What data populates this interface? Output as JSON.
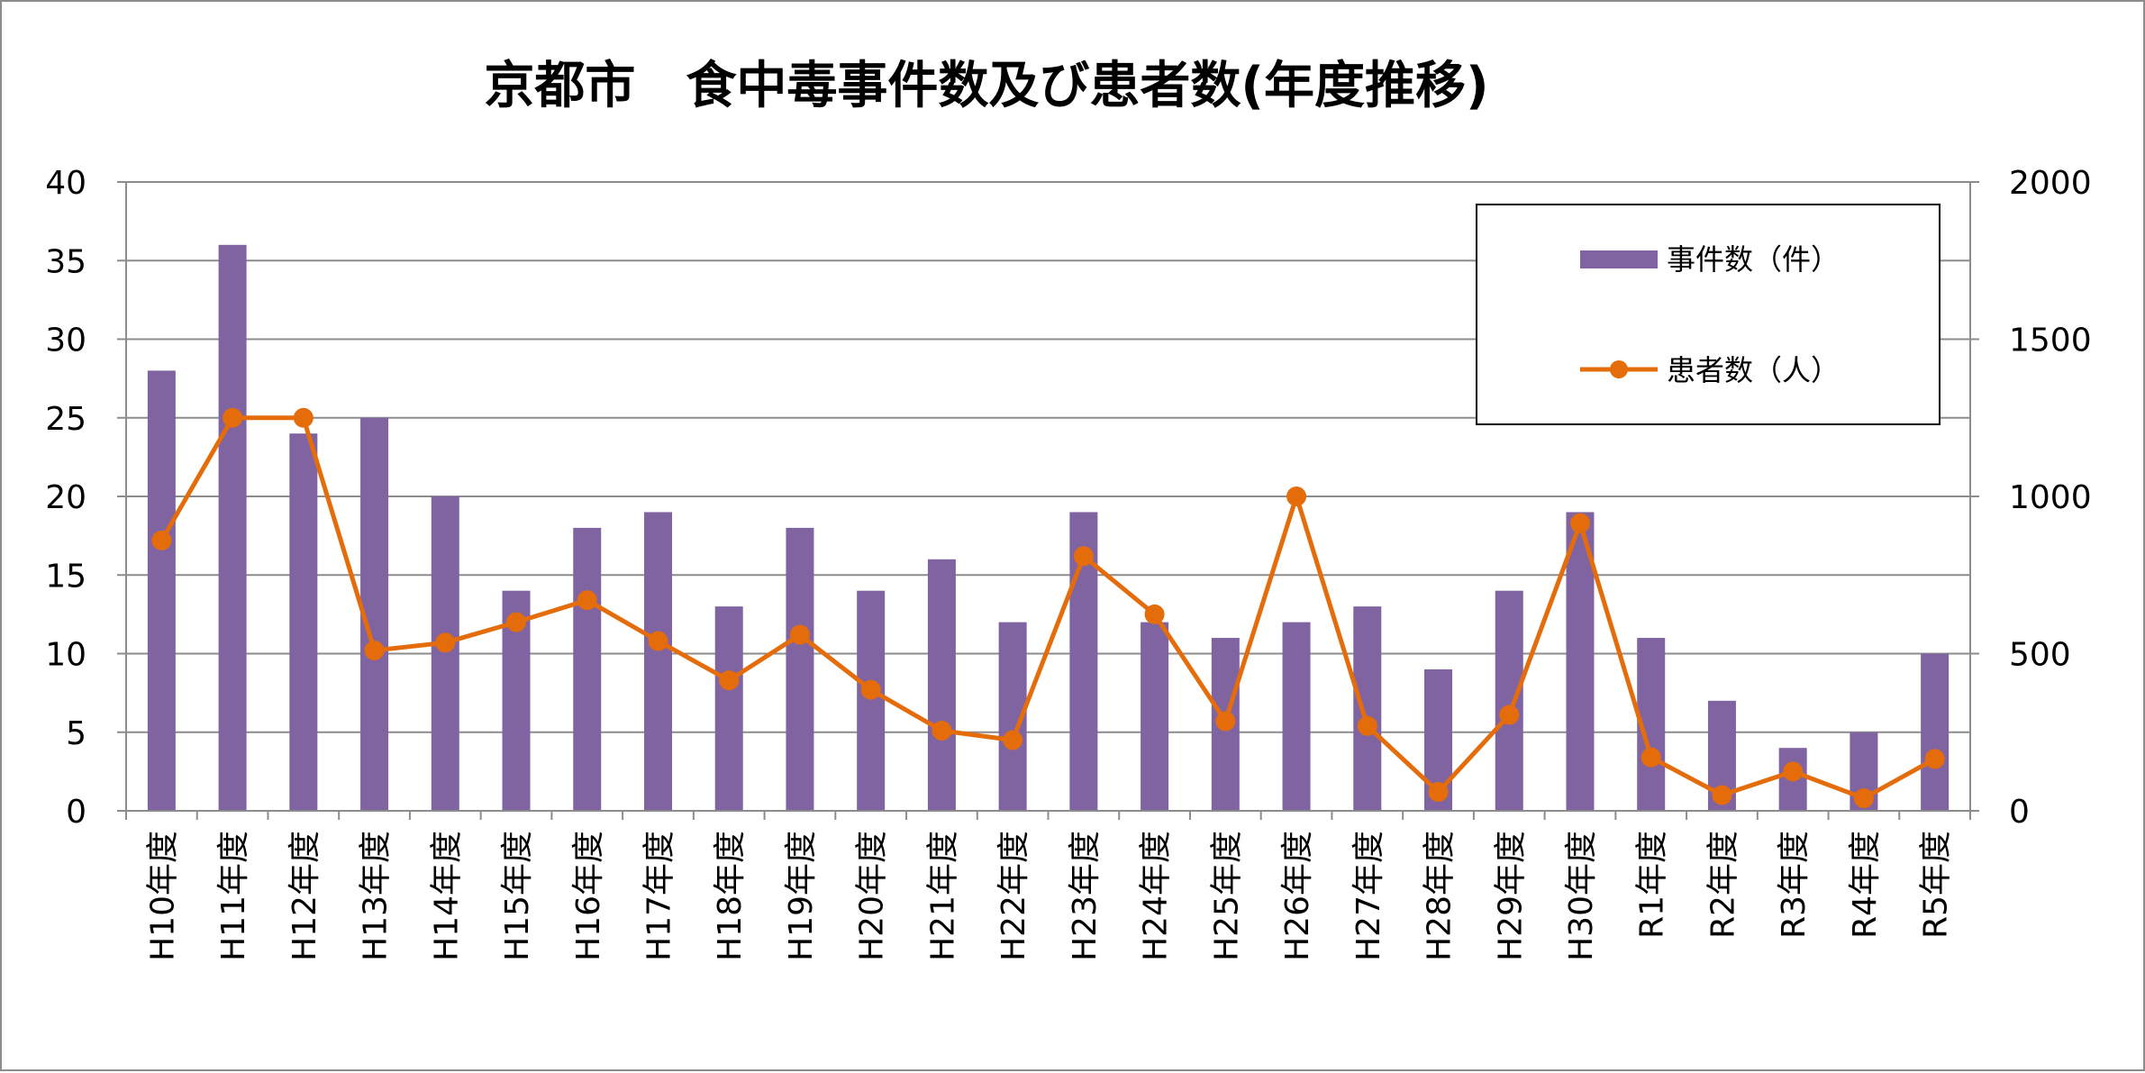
{
  "chart_data": {
    "type": "bar",
    "title": "京都市　食中毒事件数及び患者数(年度推移)",
    "categories": [
      "H10年度",
      "H11年度",
      "H12年度",
      "H13年度",
      "H14年度",
      "H15年度",
      "H16年度",
      "H17年度",
      "H18年度",
      "H19年度",
      "H20年度",
      "H21年度",
      "H22年度",
      "H23年度",
      "H24年度",
      "H25年度",
      "H26年度",
      "H27年度",
      "H28年度",
      "H29年度",
      "H30年度",
      "R1年度",
      "R2年度",
      "R3年度",
      "R4年度",
      "R5年度"
    ],
    "series": [
      {
        "name": "事件数（件）",
        "type": "bar",
        "axis": "left",
        "color": "#8064a2",
        "values": [
          28,
          36,
          24,
          25,
          20,
          14,
          18,
          19,
          13,
          18,
          14,
          16,
          12,
          19,
          12,
          11,
          12,
          13,
          9,
          14,
          19,
          11,
          7,
          4,
          5,
          10
        ]
      },
      {
        "name": "患者数（人）",
        "type": "line",
        "axis": "right",
        "color": "#e46c0a",
        "values": [
          860,
          1250,
          1250,
          510,
          535,
          600,
          670,
          540,
          415,
          560,
          385,
          255,
          225,
          810,
          625,
          285,
          1000,
          270,
          60,
          305,
          915,
          170,
          50,
          125,
          40,
          165
        ]
      }
    ],
    "left_axis": {
      "ylim": [
        0,
        40
      ],
      "ticks": [
        "0",
        "5",
        "10",
        "15",
        "20",
        "25",
        "30",
        "35",
        "40"
      ]
    },
    "right_axis": {
      "ylim": [
        0,
        2000
      ],
      "ticks": [
        "0",
        "500",
        "1000",
        "1500",
        "2000"
      ]
    },
    "grid": true,
    "legend": "top-right"
  }
}
